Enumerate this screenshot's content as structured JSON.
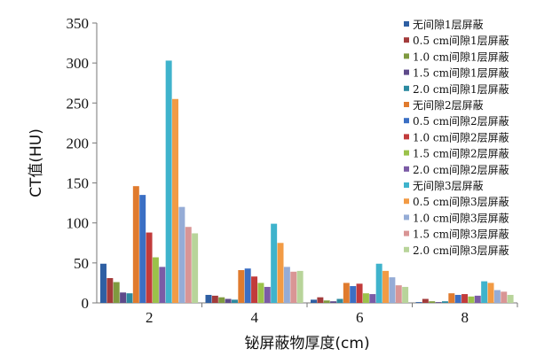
{
  "chart_data": {
    "type": "bar",
    "xlabel": "铋屏蔽物厚度(cm)",
    "ylabel": "CT值(HU)",
    "categories": [
      "2",
      "4",
      "6",
      "8"
    ],
    "ylim": [
      0,
      350
    ],
    "yticks": [
      "0",
      "50",
      "100",
      "150",
      "200",
      "250",
      "300",
      "350"
    ],
    "legend_position": "right",
    "grid": false,
    "series": [
      {
        "name": "无间隙1层屏蔽",
        "color": "#2e5fa3",
        "values": [
          49,
          10,
          4,
          1
        ]
      },
      {
        "name": "0.5 cm间隙1层屏蔽",
        "color": "#a33b3b",
        "values": [
          31,
          9,
          7,
          5
        ]
      },
      {
        "name": "1.0 cm间隙1层屏蔽",
        "color": "#7f9a3f",
        "values": [
          26,
          7,
          3,
          2
        ]
      },
      {
        "name": "1.5 cm间隙1层屏蔽",
        "color": "#5e4a8a",
        "values": [
          13,
          5,
          2,
          1
        ]
      },
      {
        "name": "2.0 cm间隙1层屏蔽",
        "color": "#2c8aa0",
        "values": [
          12,
          4,
          5,
          2
        ]
      },
      {
        "name": "无间隙2层屏蔽",
        "color": "#e07b2e",
        "values": [
          146,
          41,
          25,
          12
        ]
      },
      {
        "name": "0.5 cm间隙2层屏蔽",
        "color": "#3b6fc4",
        "values": [
          135,
          43,
          21,
          10
        ]
      },
      {
        "name": "1.0 cm间隙2层屏蔽",
        "color": "#c23b3b",
        "values": [
          88,
          33,
          24,
          11
        ]
      },
      {
        "name": "1.5 cm间隙2层屏蔽",
        "color": "#9bc24a",
        "values": [
          57,
          25,
          12,
          8
        ]
      },
      {
        "name": "2.0 cm间隙2层屏蔽",
        "color": "#7b5ba6",
        "values": [
          45,
          20,
          11,
          9
        ]
      },
      {
        "name": "无间隙3层屏蔽",
        "color": "#3fb3cc",
        "values": [
          303,
          99,
          49,
          27
        ]
      },
      {
        "name": "0.5 cm间隙3层屏蔽",
        "color": "#f29b45",
        "values": [
          255,
          75,
          40,
          25
        ]
      },
      {
        "name": "1.0 cm间隙3层屏蔽",
        "color": "#95acd6",
        "values": [
          120,
          45,
          32,
          16
        ]
      },
      {
        "name": "1.5 cm间隙3层屏蔽",
        "color": "#d99595",
        "values": [
          95,
          39,
          22,
          14
        ]
      },
      {
        "name": "2.0 cm间隙3层屏蔽",
        "color": "#b8d49a",
        "values": [
          87,
          40,
          20,
          10
        ]
      }
    ]
  }
}
